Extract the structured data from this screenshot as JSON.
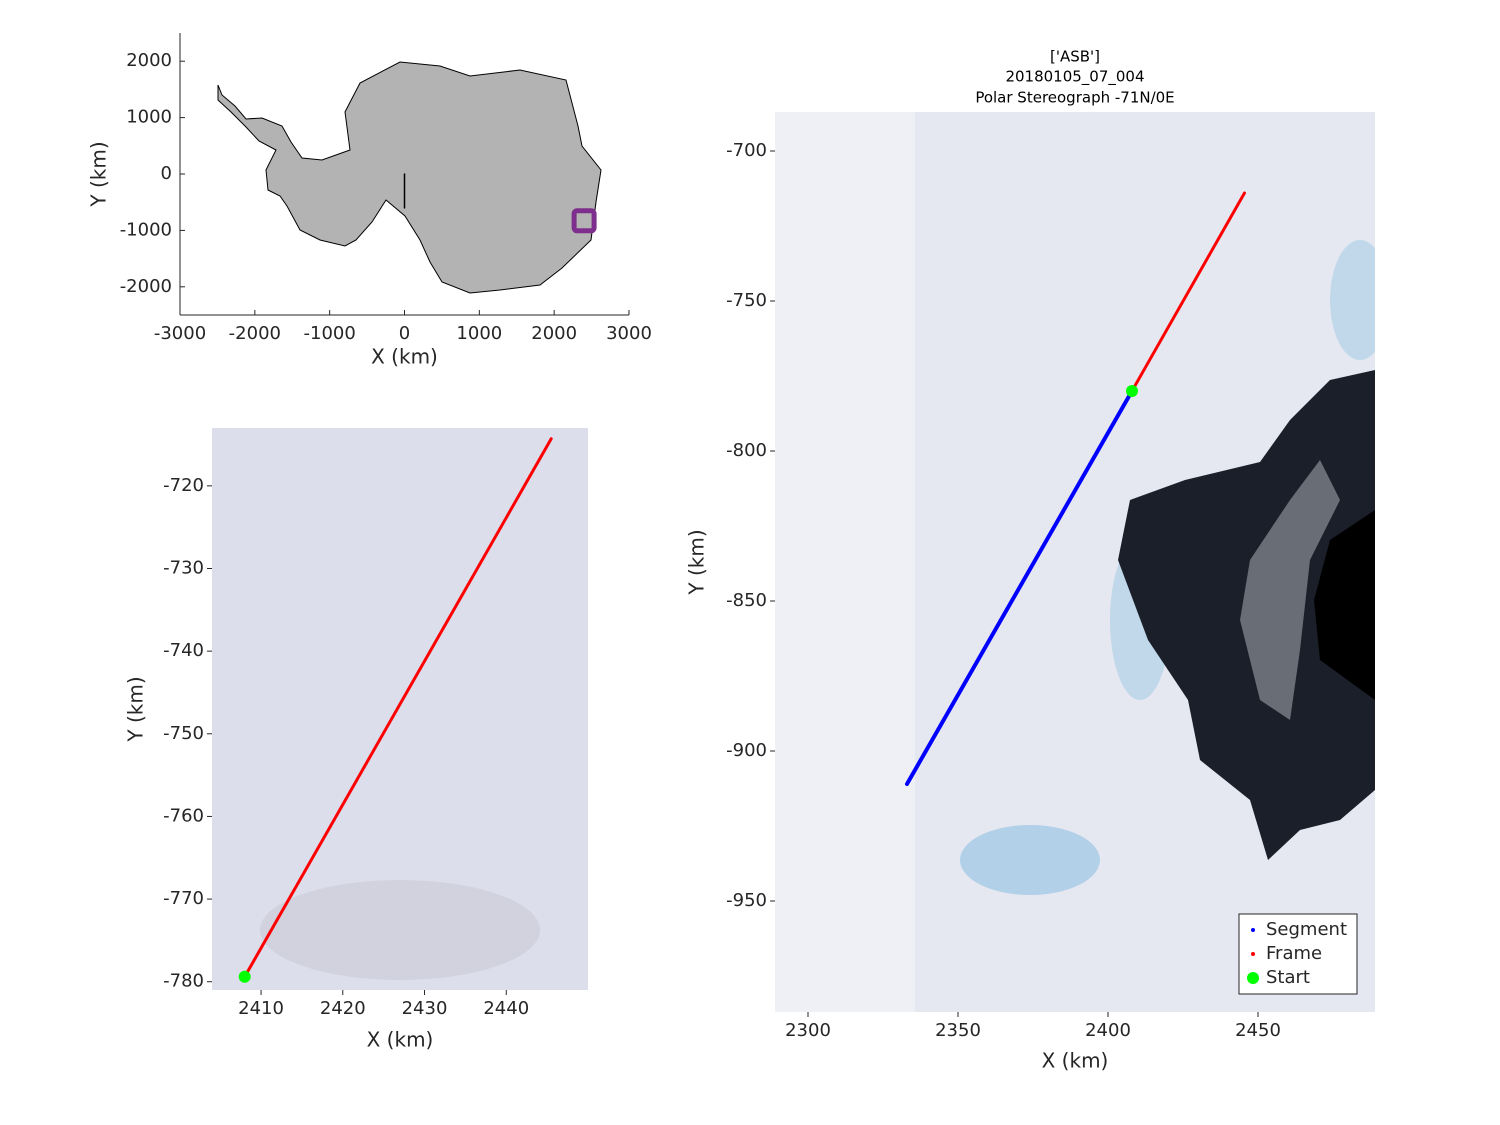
{
  "chart_data": [
    {
      "type": "line",
      "xlabel": "X (km)",
      "ylabel": "Y (km)",
      "xlim": [
        -3000,
        3000
      ],
      "ylim": [
        -2500,
        2500
      ],
      "xticks": [
        -3000,
        -2000,
        -1000,
        0,
        1000,
        2000,
        3000
      ],
      "yticks": [
        -2000,
        -1000,
        0,
        1000,
        2000
      ],
      "series": [
        {
          "color": "#000000",
          "x": [
            0,
            0
          ],
          "values": [
            0,
            -600
          ],
          "linewidth": 1.5
        },
        {
          "color": "#7e2f8e",
          "x": [
            2400
          ],
          "values": [
            -830
          ],
          "marker": "s"
        }
      ]
    },
    {
      "type": "line",
      "xlabel": "X (km)",
      "ylabel": "Y (km)",
      "xlim": [
        2404,
        2450
      ],
      "ylim": [
        -781,
        -713
      ],
      "xticks": [
        2410,
        2420,
        2430,
        2440
      ],
      "yticks": [
        -780,
        -770,
        -760,
        -750,
        -740,
        -730,
        -720
      ],
      "series": [
        {
          "color": "#ff0000",
          "x": [
            2408,
            2445.5
          ],
          "values": [
            -779.4,
            -714.3
          ],
          "linewidth": 3
        },
        {
          "color": "#00ff00",
          "x": [
            2408
          ],
          "values": [
            -779.4
          ],
          "marker": "o"
        }
      ]
    },
    {
      "type": "line",
      "title": [
        "['ASB']",
        "20180105_07_004",
        "Polar Stereograph -71N/0E"
      ],
      "xlabel": "X (km)",
      "ylabel": "Y (km)",
      "xlim": [
        2289,
        2489
      ],
      "ylim": [
        -987,
        -687
      ],
      "xticks": [
        2300,
        2350,
        2400,
        2450
      ],
      "yticks": [
        -950,
        -900,
        -850,
        -800,
        -750,
        -700
      ],
      "legend": "southeast",
      "series": [
        {
          "name": "Segment",
          "color": "#0000ff",
          "x": [
            2333,
            2408
          ],
          "values": [
            -911,
            -780
          ],
          "linewidth": 4,
          "marker": "."
        },
        {
          "name": "Frame",
          "color": "#ff0000",
          "x": [
            2408,
            2445.5
          ],
          "values": [
            -780,
            -714
          ],
          "linewidth": 3,
          "marker": "."
        },
        {
          "name": "Start",
          "color": "#00ff00",
          "x": [
            2408
          ],
          "values": [
            -780
          ],
          "marker": "o"
        }
      ]
    }
  ]
}
